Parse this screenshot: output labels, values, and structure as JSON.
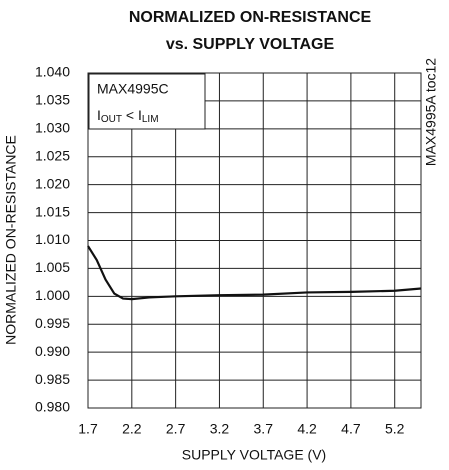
{
  "chart_data": {
    "type": "line",
    "title": [
      "NORMALIZED ON-RESISTANCE",
      "vs. SUPPLY VOLTAGE"
    ],
    "x_label": "SUPPLY VOLTAGE (V)",
    "y_label": "NORMALIZED ON-RESISTANCE",
    "annotations": {
      "device": "MAX4995C",
      "condition": [
        "I",
        "OUT",
        " < I",
        "LIM"
      ],
      "figure_id": "MAX4995A toc12"
    },
    "xlim": [
      1.7,
      5.5
    ],
    "xticks": [
      1.7,
      2.2,
      2.7,
      3.2,
      3.7,
      4.2,
      4.7,
      5.2
    ],
    "ylim": [
      0.98,
      1.04
    ],
    "yticks": [
      {
        "value": 0.98,
        "label": "0.980"
      },
      0.985,
      {
        "value": 0.99,
        "label": "0.990"
      },
      0.995,
      {
        "value": 1,
        "label": "1.000"
      },
      1.005,
      {
        "value": 1.01,
        "label": "1.010"
      },
      1.015,
      {
        "value": 1.02,
        "label": "1.020"
      },
      1.025,
      {
        "value": 1.03,
        "label": "1.030"
      },
      1.035,
      {
        "value": 1.04,
        "label": "1.040"
      }
    ],
    "grid": true,
    "series": [
      {
        "name": "MAX4995C",
        "color": "#111111",
        "x": [
          1.7,
          1.8,
          1.9,
          2.0,
          2.1,
          2.2,
          2.4,
          2.7,
          3.2,
          3.7,
          4.2,
          4.7,
          5.2,
          5.5
        ],
        "values": [
          1.009,
          1.0065,
          1.003,
          1.0005,
          0.9996,
          0.9995,
          0.9998,
          1.0,
          1.0002,
          1.0003,
          1.0007,
          1.0008,
          1.001,
          1.0014
        ]
      }
    ]
  }
}
